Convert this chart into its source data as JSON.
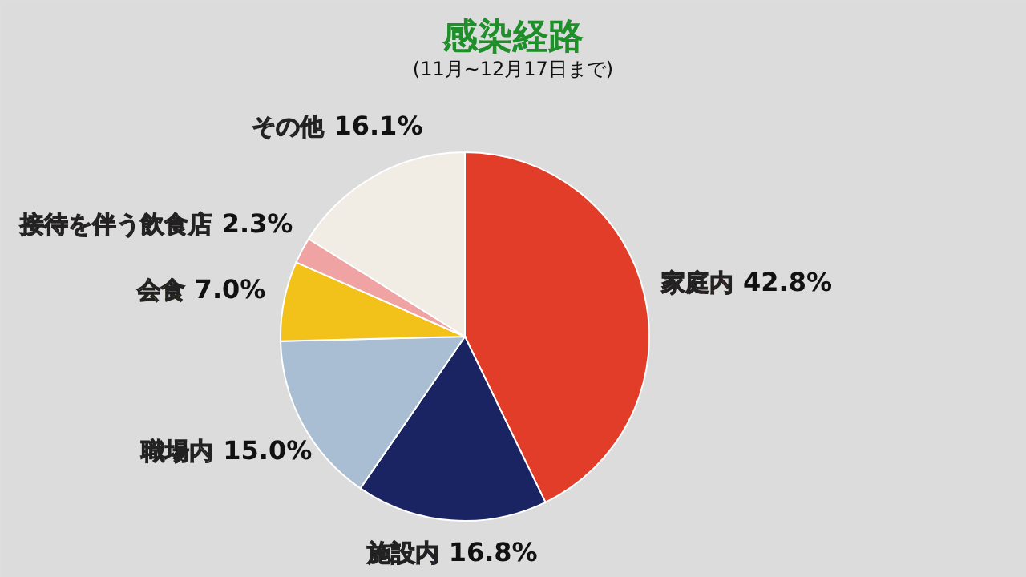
{
  "chart_data": {
    "type": "pie",
    "title": "感染経路",
    "subtitle": "(11月~12月17日まで)",
    "categories": [
      "家庭内",
      "施設内",
      "職場内",
      "会食",
      "接待を伴う飲食店",
      "その他"
    ],
    "values": [
      42.8,
      16.8,
      15.0,
      7.0,
      2.3,
      16.1
    ],
    "colors": [
      "#e23d28",
      "#1b2462",
      "#a9bdd3",
      "#f2c21a",
      "#f0a3a3",
      "#f1ede5"
    ],
    "value_labels": [
      "42.8%",
      "16.8%",
      "15.0%",
      "7.0%",
      "2.3%",
      "16.1%"
    ],
    "legend": false
  }
}
